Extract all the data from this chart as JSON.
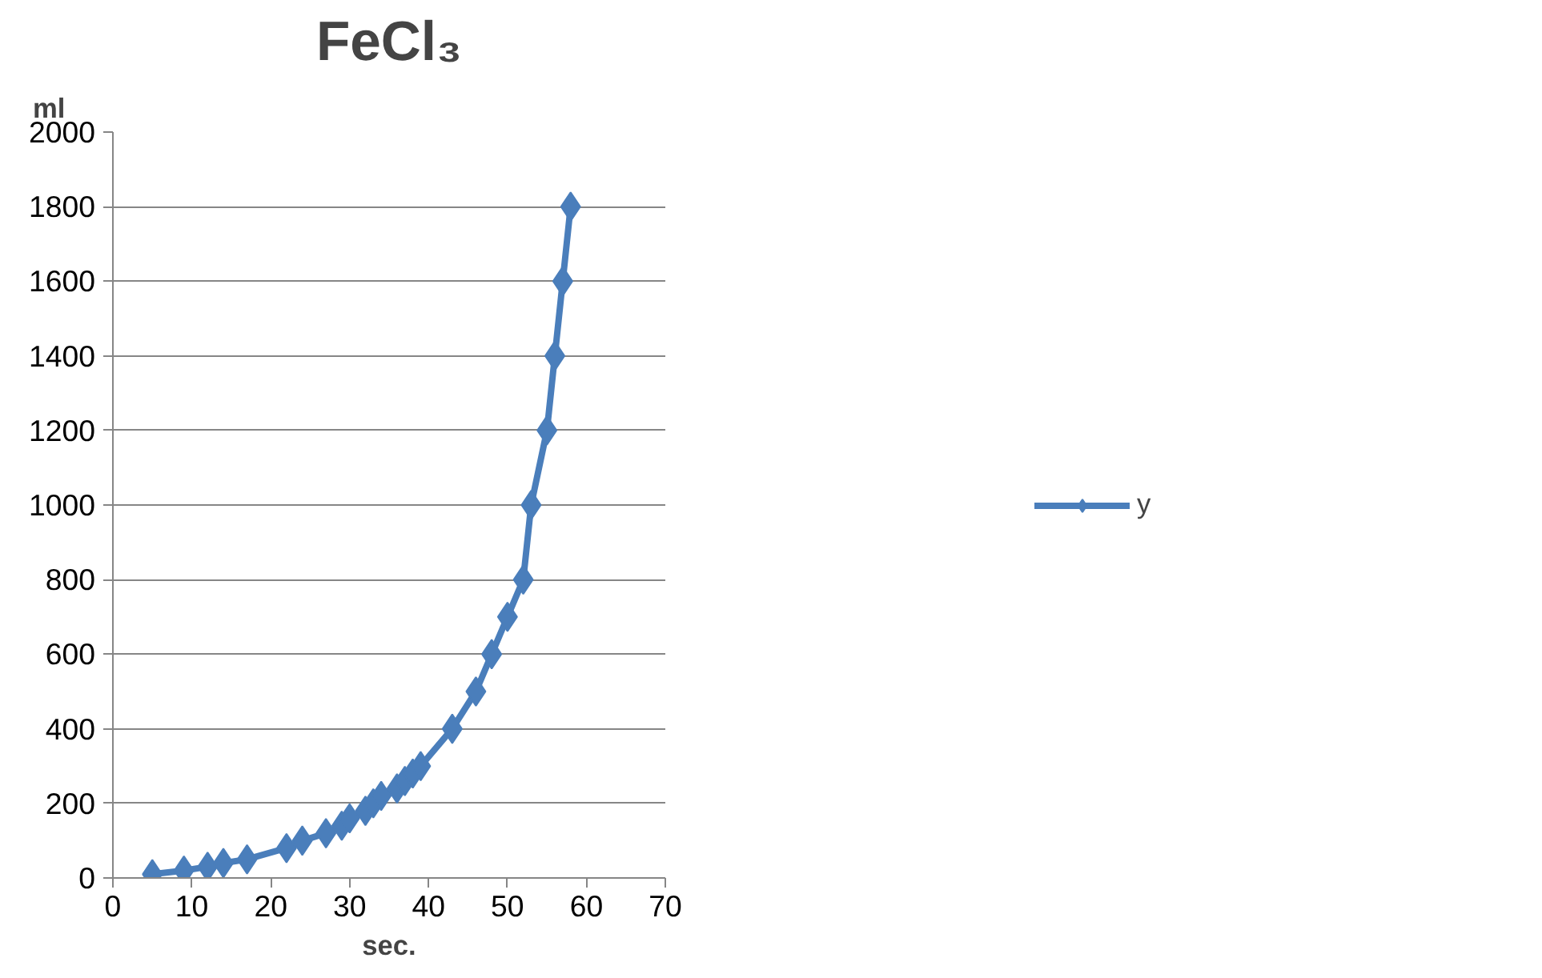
{
  "chart_data": {
    "type": "line",
    "title": "FeCl₃",
    "xlabel": "sec.",
    "ylabel": "ml",
    "x": [
      5,
      9,
      12,
      14,
      17,
      22,
      24,
      27,
      29,
      30,
      32,
      33,
      34,
      36,
      37,
      38,
      39,
      43,
      46,
      48,
      50,
      52,
      53,
      55,
      56,
      57,
      58
    ],
    "series": [
      {
        "name": "y",
        "color": "#4a7ebb",
        "values": [
          10,
          20,
          30,
          40,
          50,
          80,
          100,
          120,
          140,
          160,
          180,
          200,
          220,
          240,
          260,
          280,
          300,
          400,
          500,
          600,
          700,
          800,
          1000,
          1200,
          1400,
          1600,
          1800
        ]
      }
    ],
    "xlim": [
      0,
      70
    ],
    "xticks": [
      0,
      10,
      20,
      30,
      40,
      50,
      60,
      70
    ],
    "ylim": [
      0,
      2000
    ],
    "yticks": [
      0,
      200,
      400,
      600,
      800,
      1000,
      1200,
      1400,
      1600,
      1800,
      2000
    ],
    "grid": "y",
    "legend": "right",
    "marker": "diamond",
    "line_style": "solid"
  }
}
